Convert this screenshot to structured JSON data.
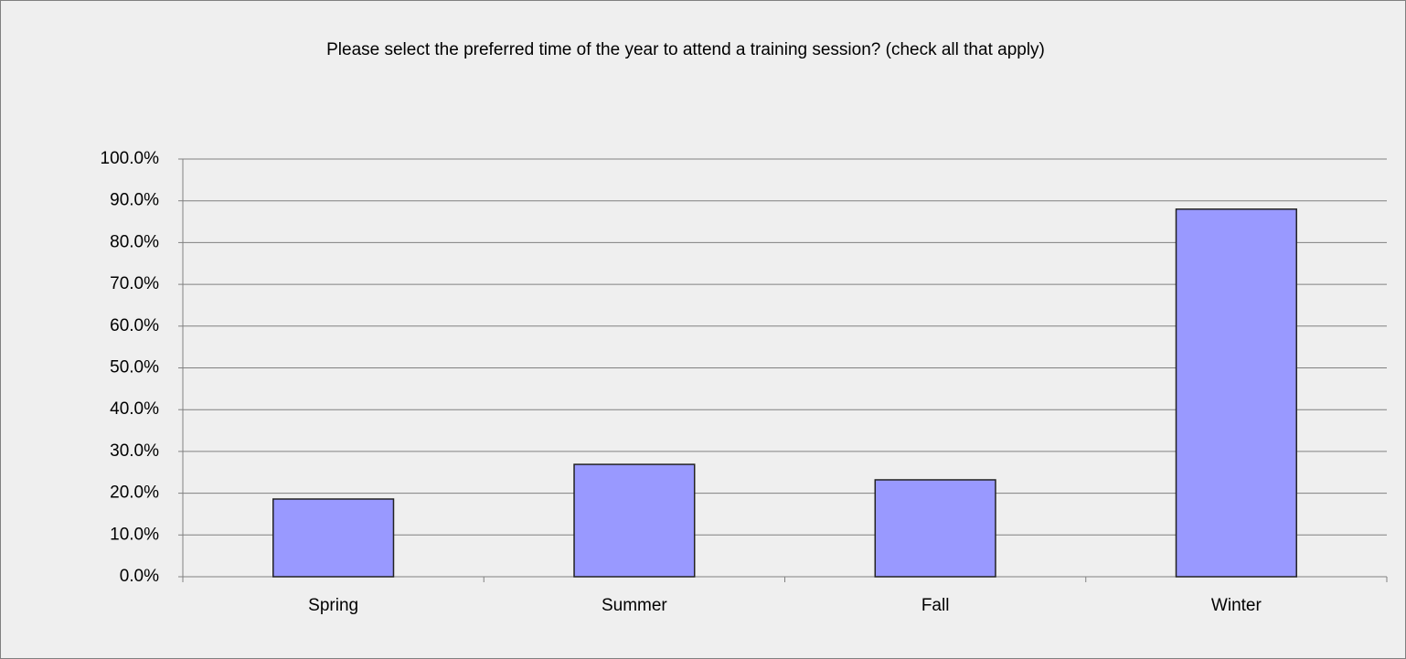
{
  "chart_data": {
    "type": "bar",
    "title": "Please select the preferred time of the year to attend a training session? (check all that apply)",
    "categories": [
      "Spring",
      "Summer",
      "Fall",
      "Winter"
    ],
    "values": [
      18.6,
      26.9,
      23.2,
      88.0
    ],
    "color": "#9999ff",
    "ylim": [
      0,
      100
    ],
    "yticks": [
      {
        "value": 0,
        "label": "0.0%"
      },
      {
        "value": 10,
        "label": "10.0%"
      },
      {
        "value": 20,
        "label": "20.0%"
      },
      {
        "value": 30,
        "label": "30.0%"
      },
      {
        "value": 40,
        "label": "40.0%"
      },
      {
        "value": 50,
        "label": "50.0%"
      },
      {
        "value": 60,
        "label": "60.0%"
      },
      {
        "value": 70,
        "label": "70.0%"
      },
      {
        "value": 80,
        "label": "80.0%"
      },
      {
        "value": 90,
        "label": "90.0%"
      },
      {
        "value": 100,
        "label": "100.0%"
      }
    ],
    "grid": true
  }
}
